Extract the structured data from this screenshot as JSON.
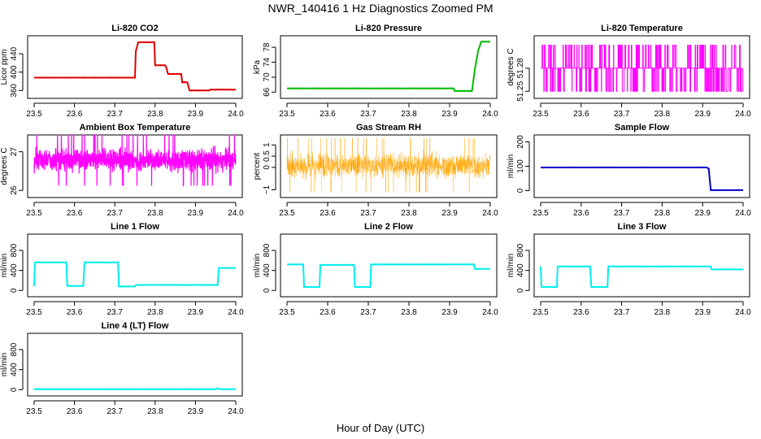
{
  "figure": {
    "title": "NWR_140416  1 Hz Diagnostics Zoomed PM",
    "xlabel": "Hour of Day (UTC)"
  },
  "chart_data": [
    {
      "type": "line",
      "title": "Li-820 CO2",
      "ylabel": "Licor ppm",
      "color": "#e00000",
      "xlim": [
        23.5,
        24.0
      ],
      "ylim": [
        350,
        472
      ],
      "xticks": [
        "23.5",
        "23.6",
        "23.7",
        "23.8",
        "23.9",
        "24.0"
      ],
      "yticks": [
        360,
        400,
        440
      ],
      "series": [
        {
          "x": [
            23.5,
            23.75,
            23.752,
            23.758,
            23.798,
            23.8,
            23.825,
            23.827,
            23.832,
            23.865,
            23.867,
            23.88,
            23.885,
            23.935,
            23.937,
            23.96,
            24.0
          ],
          "values": [
            388,
            388,
            445,
            465,
            465,
            415,
            415,
            412,
            396,
            396,
            378,
            378,
            360,
            360,
            362,
            362,
            362
          ]
        }
      ]
    },
    {
      "type": "line",
      "title": "Li-820 Pressure",
      "ylabel": "kPa",
      "color": "#00bb00",
      "xlim": [
        23.5,
        24.0
      ],
      "ylim": [
        65.2,
        80.2
      ],
      "xticks": [
        "23.5",
        "23.6",
        "23.7",
        "23.8",
        "23.9",
        "24.0"
      ],
      "yticks": [
        66,
        70,
        74,
        78
      ],
      "series": [
        {
          "x": [
            23.5,
            23.91,
            23.912,
            23.955,
            23.962,
            23.97,
            23.978,
            24.0
          ],
          "values": [
            67,
            67,
            66.3,
            66.3,
            72,
            77,
            79.5,
            79.5
          ]
        }
      ]
    },
    {
      "type": "line",
      "title": "Li-820 Temperature",
      "ylabel": "degrees C",
      "color": "#ff00ff",
      "xlim": [
        23.5,
        24.0
      ],
      "ylim": [
        51.245,
        51.318
      ],
      "xticks": [
        "23.5",
        "23.6",
        "23.7",
        "23.8",
        "23.9",
        "24.0"
      ],
      "yticks": [
        51.25,
        51.28
      ],
      "noise": "two-level-switching",
      "levels": [
        51.25,
        51.28,
        51.31
      ]
    },
    {
      "type": "line",
      "title": "Ambient Box Temperature",
      "ylabel": "degrees C",
      "color": "#ff00ff",
      "xlim": [
        23.5,
        24.0
      ],
      "ylim": [
        25.9,
        27.35
      ],
      "xticks": [
        "23.5",
        "23.6",
        "23.7",
        "23.8",
        "23.9",
        "24.0"
      ],
      "yticks": [
        26.0,
        27.0
      ],
      "noise": "band",
      "center": 26.78,
      "spread": 0.3
    },
    {
      "type": "scatter",
      "title": "Gas Stream RH",
      "ylabel": "percent",
      "color": "#ffa500",
      "xlim": [
        23.5,
        24.0
      ],
      "ylim": [
        -1.2,
        1.3
      ],
      "xticks": [
        "23.5",
        "23.6",
        "23.7",
        "23.8",
        "23.9",
        "24.0"
      ],
      "yticks": [
        -1.0,
        0.0,
        0.5,
        1.0
      ],
      "noise": "band",
      "center": 0.1,
      "spread": 0.55
    },
    {
      "type": "line",
      "title": "Sample Flow",
      "ylabel": "ml/min",
      "color": "#0000cc",
      "xlim": [
        23.5,
        24.0
      ],
      "ylim": [
        -15,
        215
      ],
      "xticks": [
        "23.5",
        "23.6",
        "23.7",
        "23.8",
        "23.9",
        "24.0"
      ],
      "yticks": [
        0,
        100,
        200
      ],
      "series": [
        {
          "x": [
            23.5,
            23.91,
            23.915,
            23.92,
            24.0
          ],
          "values": [
            95,
            95,
            90,
            2,
            2
          ]
        }
      ]
    },
    {
      "type": "line",
      "title": "Line 1 Flow",
      "ylabel": "ml/min",
      "color": "#00eeee",
      "xlim": [
        23.5,
        24.0
      ],
      "ylim": [
        -60,
        1060
      ],
      "xticks": [
        "23.5",
        "23.6",
        "23.7",
        "23.8",
        "23.9",
        "24.0"
      ],
      "yticks": [
        0,
        400,
        800
      ],
      "series": [
        {
          "x": [
            23.5,
            23.502,
            23.58,
            23.582,
            23.622,
            23.625,
            23.708,
            23.71,
            23.75,
            23.752,
            23.955,
            23.958,
            24.0
          ],
          "values": [
            90,
            560,
            560,
            90,
            90,
            560,
            560,
            80,
            80,
            110,
            110,
            450,
            450
          ]
        }
      ]
    },
    {
      "type": "line",
      "title": "Line 2 Flow",
      "ylabel": "ml/min",
      "color": "#00eeee",
      "xlim": [
        23.5,
        24.0
      ],
      "ylim": [
        -60,
        1060
      ],
      "xticks": [
        "23.5",
        "23.6",
        "23.7",
        "23.8",
        "23.9",
        "24.0"
      ],
      "yticks": [
        0,
        400,
        800
      ],
      "series": [
        {
          "x": [
            23.5,
            23.54,
            23.542,
            23.58,
            23.582,
            23.665,
            23.667,
            23.705,
            23.707,
            23.96,
            23.962,
            24.0
          ],
          "values": [
            520,
            520,
            70,
            70,
            510,
            510,
            70,
            70,
            520,
            520,
            430,
            430
          ]
        }
      ]
    },
    {
      "type": "line",
      "title": "Line 3 Flow",
      "ylabel": "ml/min",
      "color": "#00eeee",
      "xlim": [
        23.5,
        24.0
      ],
      "ylim": [
        -60,
        1060
      ],
      "xticks": [
        "23.5",
        "23.6",
        "23.7",
        "23.8",
        "23.9",
        "24.0"
      ],
      "yticks": [
        0,
        400,
        800
      ],
      "series": [
        {
          "x": [
            23.5,
            23.502,
            23.54,
            23.542,
            23.622,
            23.625,
            23.665,
            23.667,
            23.92,
            23.922,
            24.0
          ],
          "values": [
            480,
            70,
            70,
            480,
            480,
            70,
            70,
            480,
            480,
            420,
            420
          ]
        }
      ]
    },
    {
      "type": "line",
      "title": "Line 4 (LT) Flow",
      "ylabel": "ml/min",
      "color": "#00eeee",
      "xlim": [
        23.5,
        24.0
      ],
      "ylim": [
        -60,
        1060
      ],
      "xticks": [
        "23.5",
        "23.6",
        "23.7",
        "23.8",
        "23.9",
        "24.0"
      ],
      "yticks": [
        0,
        400,
        800
      ],
      "series": [
        {
          "x": [
            23.5,
            23.95,
            23.955,
            23.96,
            24.0
          ],
          "values": [
            10,
            10,
            30,
            10,
            10
          ]
        }
      ]
    }
  ]
}
